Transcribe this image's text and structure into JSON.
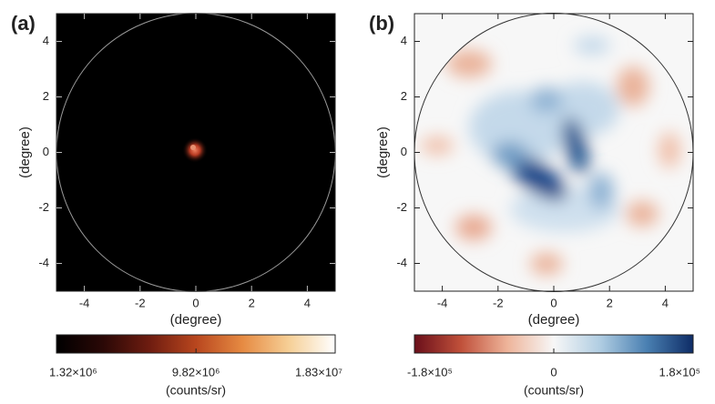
{
  "chart_data": [
    {
      "type": "heatmap",
      "panel_label": "(a)",
      "xlabel": "(degree)",
      "ylabel": "(degree)",
      "xlim": [
        -5,
        5
      ],
      "ylim": [
        -5,
        5
      ],
      "xticks": [
        -4,
        -2,
        0,
        2,
        4
      ],
      "yticks": [
        -4,
        -2,
        0,
        2,
        4
      ],
      "background": "#000000",
      "circle_color": "#9a9a9a",
      "colorbar": {
        "label": "(counts/sr)",
        "lim": [
          1320000,
          18300000
        ],
        "ticks": [
          {
            "value": 1320000,
            "label": "1.32×10⁶"
          },
          {
            "value": 9820000,
            "label": "9.82×10⁶"
          },
          {
            "value": 18300000,
            "label": "1.83×10⁷"
          }
        ],
        "colors": [
          "#000000",
          "#2a0806",
          "#6e1c10",
          "#b8461e",
          "#e68a42",
          "#f6cf96",
          "#ffffff"
        ]
      }
    },
    {
      "type": "heatmap",
      "panel_label": "(b)",
      "xlabel": "(degree)",
      "ylabel": "(degree)",
      "xlim": [
        -5,
        5
      ],
      "ylim": [
        -5,
        5
      ],
      "xticks": [
        -4,
        -2,
        0,
        2,
        4
      ],
      "yticks": [
        -4,
        -2,
        0,
        2,
        4
      ],
      "background": "#f7f7f7",
      "circle_color": "#333333",
      "colorbar": {
        "label": "(counts/sr)",
        "lim": [
          -180000,
          180000
        ],
        "ticks": [
          {
            "value": -180000,
            "label": "-1.8×10⁵"
          },
          0,
          {
            "value": 180000,
            "label": "1.8×10⁵"
          }
        ],
        "colors": [
          "#6a0f1a",
          "#c0503a",
          "#eeb49a",
          "#f7f7f7",
          "#b0cde2",
          "#4a80b2",
          "#0e2c66"
        ]
      }
    }
  ]
}
